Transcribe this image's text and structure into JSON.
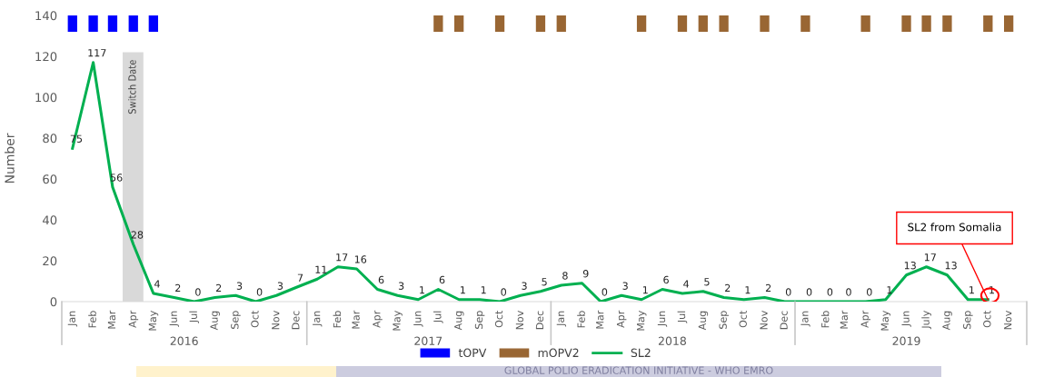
{
  "chart_data": {
    "type": "line",
    "ylabel": "Number",
    "x": [
      "2016-01",
      "2016-02",
      "2016-03",
      "2016-04",
      "2016-05",
      "2016-06",
      "2016-07",
      "2016-08",
      "2016-09",
      "2016-10",
      "2016-11",
      "2016-12",
      "2017-01",
      "2017-02",
      "2017-03",
      "2017-04",
      "2017-05",
      "2017-06",
      "2017-07",
      "2017-08",
      "2017-09",
      "2017-10",
      "2017-11",
      "2017-12",
      "2018-01",
      "2018-02",
      "2018-03",
      "2018-04",
      "2018-05",
      "2018-06",
      "2018-07",
      "2018-08",
      "2018-09",
      "2018-10",
      "2018-11",
      "2018-12",
      "2019-01",
      "2019-02",
      "2019-03",
      "2019-04",
      "2019-05",
      "2019-06",
      "2019-07",
      "2019-08",
      "2019-09",
      "2019-10",
      "2019-11"
    ],
    "series": [
      {
        "name": "tOPV",
        "type": "bar",
        "color": "#0000ff",
        "base": [
          132,
          132,
          132,
          132,
          132,
          null,
          null,
          null,
          null,
          null,
          null,
          null,
          null,
          null,
          null,
          null,
          null,
          null,
          null,
          null,
          null,
          null,
          null,
          null,
          null,
          null,
          null,
          null,
          null,
          null,
          null,
          null,
          null,
          null,
          null,
          null,
          null,
          null,
          null,
          null,
          null,
          null,
          null,
          null,
          null,
          null,
          null
        ],
        "values": [
          8,
          8,
          8,
          8,
          8,
          null,
          null,
          null,
          null,
          null,
          null,
          null,
          null,
          null,
          null,
          null,
          null,
          null,
          null,
          null,
          null,
          null,
          null,
          null,
          null,
          null,
          null,
          null,
          null,
          null,
          null,
          null,
          null,
          null,
          null,
          null,
          null,
          null,
          null,
          null,
          null,
          null,
          null,
          null,
          null,
          null,
          null
        ]
      },
      {
        "name": "mOPV2",
        "type": "bar",
        "color": "#996633",
        "base": [
          null,
          null,
          null,
          null,
          null,
          null,
          null,
          null,
          null,
          null,
          null,
          null,
          null,
          null,
          null,
          null,
          null,
          null,
          132,
          132,
          null,
          132,
          null,
          132,
          132,
          null,
          null,
          null,
          132,
          null,
          132,
          132,
          132,
          null,
          132,
          null,
          132,
          null,
          null,
          132,
          null,
          132,
          132,
          132,
          null,
          132,
          132
        ],
        "values": [
          null,
          null,
          null,
          null,
          null,
          null,
          null,
          null,
          null,
          null,
          null,
          null,
          null,
          null,
          null,
          null,
          null,
          null,
          8,
          8,
          null,
          8,
          null,
          8,
          8,
          null,
          null,
          null,
          8,
          null,
          8,
          8,
          8,
          null,
          8,
          null,
          8,
          null,
          null,
          8,
          null,
          8,
          8,
          8,
          null,
          8,
          8
        ]
      },
      {
        "name": "SL2",
        "color": "#00b050",
        "data_labels": true,
        "values": [
          75,
          117,
          56,
          28,
          4,
          2,
          0,
          2,
          3,
          0,
          3,
          7,
          11,
          17,
          16,
          6,
          3,
          1,
          6,
          1,
          1,
          0,
          3,
          5,
          8,
          9,
          0,
          3,
          1,
          6,
          4,
          5,
          2,
          1,
          2,
          0,
          0,
          0,
          0,
          0,
          1,
          13,
          17,
          13,
          1,
          1,
          null
        ]
      }
    ],
    "xlim": [
      "2015-12-16",
      "2019-11-28"
    ],
    "xticks": [
      {
        "value": "2016-01",
        "label": "Jan"
      },
      {
        "value": "2016-02",
        "label": "Feb"
      },
      {
        "value": "2016-03",
        "label": "Mar"
      },
      {
        "value": "2016-04",
        "label": "Apr"
      },
      {
        "value": "2016-05",
        "label": "May"
      },
      {
        "value": "2016-06",
        "label": "Jun"
      },
      {
        "value": "2016-07",
        "label": "Jul"
      },
      {
        "value": "2016-08",
        "label": "Aug"
      },
      {
        "value": "2016-09",
        "label": "Sep"
      },
      {
        "value": "2016-10",
        "label": "Oct"
      },
      {
        "value": "2016-11",
        "label": "Nov"
      },
      {
        "value": "2016-12",
        "label": "Dec"
      },
      {
        "value": "2017-01",
        "label": "Jan"
      },
      {
        "value": "2017-02",
        "label": "Feb"
      },
      {
        "value": "2017-03",
        "label": "Mar"
      },
      {
        "value": "2017-04",
        "label": "Apr"
      },
      {
        "value": "2017-05",
        "label": "May"
      },
      {
        "value": "2017-06",
        "label": "Jun"
      },
      {
        "value": "2017-07",
        "label": "Jul"
      },
      {
        "value": "2017-08",
        "label": "Aug"
      },
      {
        "value": "2017-09",
        "label": "Sep"
      },
      {
        "value": "2017-10",
        "label": "Oct"
      },
      {
        "value": "2017-11",
        "label": "Nov"
      },
      {
        "value": "2017-12",
        "label": "Dec"
      },
      {
        "value": "2018-01",
        "label": "Jan"
      },
      {
        "value": "2018-02",
        "label": "Feb"
      },
      {
        "value": "2018-03",
        "label": "Mar"
      },
      {
        "value": "2018-04",
        "label": "Apr"
      },
      {
        "value": "2018-05",
        "label": "May"
      },
      {
        "value": "2018-06",
        "label": "Jun"
      },
      {
        "value": "2018-07",
        "label": "Jul"
      },
      {
        "value": "2018-08",
        "label": "Aug"
      },
      {
        "value": "2018-09",
        "label": "Sep"
      },
      {
        "value": "2018-10",
        "label": "Oct"
      },
      {
        "value": "2018-11",
        "label": "Nov"
      },
      {
        "value": "2018-12",
        "label": "Dec"
      },
      {
        "value": "2019-01",
        "label": "Jan"
      },
      {
        "value": "2019-02",
        "label": "Feb"
      },
      {
        "value": "2019-03",
        "label": "Mar"
      },
      {
        "value": "2019-04",
        "label": "Apr"
      },
      {
        "value": "2019-05",
        "label": "May"
      },
      {
        "value": "2019-06",
        "label": "Jun"
      },
      {
        "value": "2019-07",
        "label": "July"
      },
      {
        "value": "2019-08",
        "label": "Aug"
      },
      {
        "value": "2019-09",
        "label": "Sep"
      },
      {
        "value": "2019-10",
        "label": "Oct"
      },
      {
        "value": "2019-11",
        "label": "Nov"
      }
    ],
    "x2lim": [
      "2015-12-16",
      "2019-11-28"
    ],
    "x2ticks": [
      {
        "value": "2016-06-16",
        "label": "2016"
      },
      {
        "value": "2017-06-16",
        "label": "2017"
      },
      {
        "value": "2018-06-16",
        "label": "2018"
      },
      {
        "value": "2019-06-01",
        "label": "2019"
      }
    ],
    "ylim": [
      0,
      140
    ],
    "yticks": [
      0,
      20,
      40,
      60,
      80,
      100,
      120,
      140
    ],
    "bands": [
      {
        "axis": "x",
        "from": "2016-03-16",
        "to": "2016-04-16",
        "label": "Switch Date",
        "color": "#d9d9d9"
      }
    ],
    "annotations": [
      {
        "text": "SL2 from Somalia",
        "x": "2019-10",
        "y": 1
      },
      "GLOBAL POLIO ERADICATION INITIATIVE - WHO EMRO"
    ],
    "legend": "bottom",
    "grid": false
  }
}
